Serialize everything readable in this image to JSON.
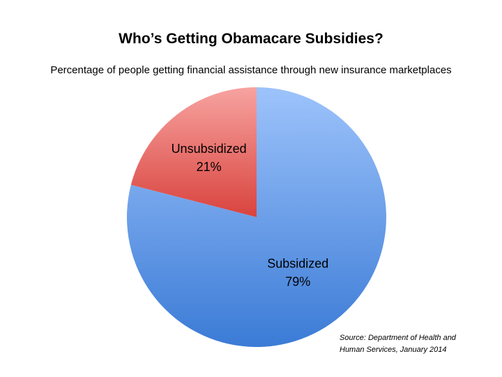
{
  "chart_data": {
    "type": "pie",
    "title": "Who’s Getting Obamacare Subsidies?",
    "subtitle": "Percentage of people getting financial assistance through new insurance marketplaces",
    "slices": [
      {
        "label": "Subsidized",
        "value": 79,
        "value_label": "79%",
        "color_light": "#9dc3fb",
        "color_dark": "#3b7bd6"
      },
      {
        "label": "Unsubsidized",
        "value": 21,
        "value_label": "21%",
        "color_light": "#f7a3a0",
        "color_dark": "#d9433e"
      }
    ],
    "start": "12 o'clock",
    "direction": "clockwise",
    "legend": "none",
    "source_lines": [
      "Source: Department of Health and",
      "Human Services, January 2014"
    ]
  }
}
